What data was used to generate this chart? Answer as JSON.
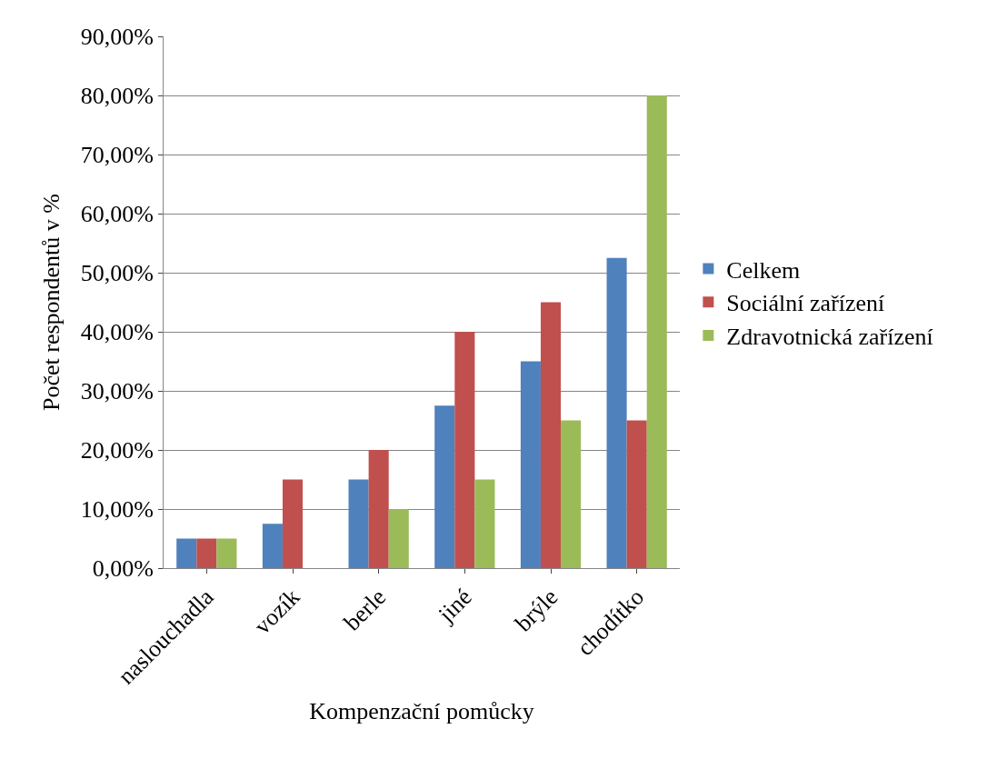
{
  "chart_data": {
    "type": "bar",
    "xlabel": "Kompenzační pomůcky",
    "ylabel": "Počet respondentů v %",
    "categories": [
      "naslouchadla",
      "vozík",
      "berle",
      "jiné",
      "brýle",
      "chodítko"
    ],
    "series": [
      {
        "name": "Celkem",
        "color": "#4f81bd",
        "values": [
          5,
          7.5,
          15,
          27.5,
          35,
          52.5
        ]
      },
      {
        "name": "Sociální zařízení",
        "color": "#c0504d",
        "values": [
          5,
          15,
          20,
          40,
          45,
          25
        ]
      },
      {
        "name": "Zdravotnická zařízení",
        "color": "#9bbb59",
        "values": [
          5,
          0,
          10,
          15,
          25,
          80
        ]
      }
    ],
    "ylim": [
      0,
      90
    ],
    "yticks": [
      {
        "value": 0,
        "label": "0,00%"
      },
      {
        "value": 10,
        "label": "10,00%"
      },
      {
        "value": 20,
        "label": "20,00%"
      },
      {
        "value": 30,
        "label": "30,00%"
      },
      {
        "value": 40,
        "label": "40,00%"
      },
      {
        "value": 50,
        "label": "50,00%"
      },
      {
        "value": 60,
        "label": "60,00%"
      },
      {
        "value": 70,
        "label": "70,00%"
      },
      {
        "value": 80,
        "label": "80,00%"
      },
      {
        "value": 90,
        "label": "90,00%"
      }
    ],
    "grid": "y",
    "legend": "right"
  }
}
